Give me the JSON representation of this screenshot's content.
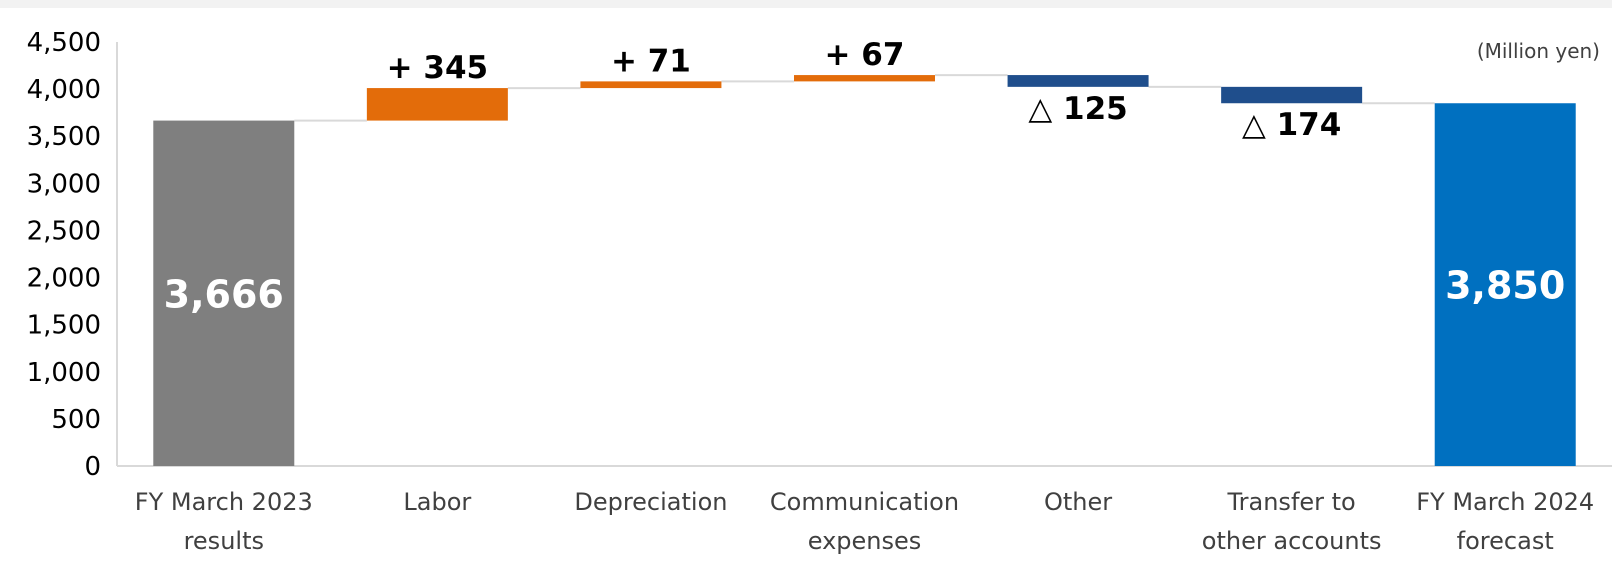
{
  "chart_data": {
    "type": "bar",
    "subtype": "waterfall",
    "unit_note": "(Million yen)",
    "ylim": [
      0,
      4500
    ],
    "y_ticks": [
      "0",
      "500",
      "1,000",
      "1,500",
      "2,000",
      "2,500",
      "3,000",
      "3,500",
      "4,000",
      "4,500"
    ],
    "y_tick_values": [
      0,
      500,
      1000,
      1500,
      2000,
      2500,
      3000,
      3500,
      4000,
      4500
    ],
    "grid": false,
    "connector_lines": true,
    "bars": [
      {
        "category": [
          "FY March 2023",
          "results"
        ],
        "kind": "total",
        "value": 3666,
        "label": "3,666",
        "color": "#7f7f7f"
      },
      {
        "category": [
          "Labor"
        ],
        "kind": "increase",
        "value": 345,
        "label": "+ 345",
        "color": "#e36c0a"
      },
      {
        "category": [
          "Depreciation"
        ],
        "kind": "increase",
        "value": 71,
        "label": "+ 71",
        "color": "#e36c0a"
      },
      {
        "category": [
          "Communication",
          "expenses"
        ],
        "kind": "increase",
        "value": 67,
        "label": "+ 67",
        "color": "#e36c0a"
      },
      {
        "category": [
          "Other"
        ],
        "kind": "decrease",
        "value": -125,
        "label": "△ 125",
        "color": "#1f4e8c"
      },
      {
        "category": [
          "Transfer to",
          "other accounts"
        ],
        "kind": "decrease",
        "value": -174,
        "label": "△ 174",
        "color": "#1f4e8c"
      },
      {
        "category": [
          "FY March 2024",
          "forecast"
        ],
        "kind": "total",
        "value": 3850,
        "label": "3,850",
        "color": "#0070c0"
      }
    ]
  }
}
